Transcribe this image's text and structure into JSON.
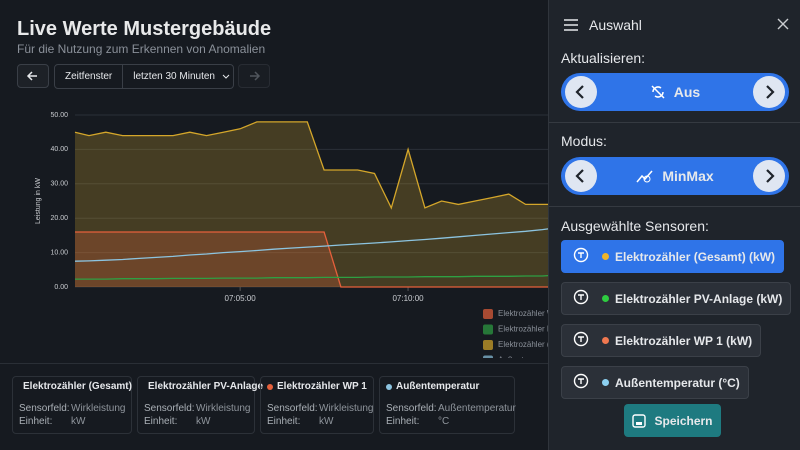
{
  "header": {
    "title": "Live Werte Mustergebäude",
    "subtitle": "Für die Nutzung zum Erkennen von Anomalien"
  },
  "toolbar": {
    "label": "Zeitfenster",
    "range": "letzten 30 Minuten"
  },
  "chart_data": {
    "type": "line",
    "y_label": "Leistung in kW",
    "x": [
      "07:00:05",
      "07:00:30",
      "07:01:00",
      "07:01:30",
      "07:02:00",
      "07:02:30",
      "07:03:00",
      "07:03:30",
      "07:04:00",
      "07:04:30",
      "07:05:00",
      "07:05:30",
      "07:06:00",
      "07:06:30",
      "07:07:00",
      "07:07:30",
      "07:08:00",
      "07:08:30",
      "07:09:00",
      "07:09:30",
      "07:10:00",
      "07:10:30",
      "07:11:00",
      "07:11:30",
      "07:12:00",
      "07:12:30",
      "07:13:00",
      "07:13:30",
      "07:14:00",
      "07:14:10"
    ],
    "xlim": [
      "07:00:05",
      "07:14:10"
    ],
    "xticks": [
      "07:05:00",
      "07:10:00"
    ],
    "ylim": [
      0,
      50
    ],
    "yticks": [
      {
        "value": 0,
        "label": "0.00"
      },
      {
        "value": 10,
        "label": "10.00"
      },
      {
        "value": 20,
        "label": "20.00"
      },
      {
        "value": 30,
        "label": "30.00"
      },
      {
        "value": 40,
        "label": "40.00"
      },
      {
        "value": 50,
        "label": "50.00"
      }
    ],
    "grid": true,
    "series": [
      {
        "name": "Elektrozähler (Gesamt)",
        "color": "#d4a62a",
        "area": true,
        "field": "Wirkleistung",
        "unit": "kW",
        "values": [
          45,
          44,
          45,
          44,
          44,
          44,
          44,
          45,
          44,
          45,
          46,
          48,
          48,
          48,
          48,
          34,
          34,
          34,
          33,
          23,
          40,
          23,
          25,
          24,
          25,
          26,
          27,
          24,
          24,
          24
        ]
      },
      {
        "name": "Elektrozähler PV-Anlage",
        "color": "#2ea043",
        "area": false,
        "field": "Wirkleistung",
        "unit": "kW",
        "values": [
          2.3,
          2.3,
          2.3,
          2.4,
          2.4,
          2.4,
          2.5,
          2.5,
          2.5,
          2.6,
          2.6,
          2.6,
          2.7,
          2.7,
          2.7,
          2.8,
          2.8,
          2.8,
          2.9,
          2.9,
          2.9,
          3.0,
          3.0,
          3.0,
          3.1,
          3.1,
          3.1,
          3.2,
          3.2,
          3.3
        ]
      },
      {
        "name": "Elektrozähler WP 1",
        "color": "#e5603b",
        "area": true,
        "field": "Wirkleistung",
        "unit": "kW",
        "values": [
          16,
          16,
          16,
          16,
          16,
          16,
          16,
          16,
          16,
          16,
          16,
          16,
          16,
          16,
          16,
          16,
          0,
          0,
          0,
          0,
          0,
          0,
          0,
          0,
          0,
          0,
          0,
          0,
          0,
          0
        ]
      },
      {
        "name": "Außentemperatur",
        "color": "#8cc4e0",
        "area": false,
        "field": "Außentemperatur",
        "unit": "°C",
        "values": [
          7.5,
          7.6,
          7.8,
          8.0,
          8.3,
          8.6,
          8.9,
          9.3,
          9.6,
          10.0,
          10.3,
          10.6,
          11.0,
          11.3,
          11.6,
          11.9,
          12.2,
          12.5,
          12.8,
          13.1,
          13.5,
          13.8,
          14.2,
          14.6,
          15.0,
          15.4,
          15.8,
          16.2,
          16.7,
          16.9
        ]
      }
    ]
  },
  "cards": {
    "field_label": "Sensorfeld:",
    "unit_label": "Einheit:"
  },
  "panel": {
    "title": "Auswahl",
    "refresh": {
      "label": "Aktualisieren:",
      "value": "Aus"
    },
    "mode": {
      "label": "Modus:",
      "value": "MinMax"
    },
    "sensors": {
      "label": "Ausgewählte Sensoren:",
      "items": [
        {
          "label": "Elektrozähler (Gesamt) (kW)",
          "color": "#f0b429",
          "selected": true
        },
        {
          "label": "Elektrozähler PV-Anlage (kW)",
          "color": "#2ecc40",
          "selected": false
        },
        {
          "label": "Elektrozähler WP 1 (kW)",
          "color": "#f07850",
          "selected": false
        },
        {
          "label": "Außentemperatur (°C)",
          "color": "#8cd0f0",
          "selected": false
        }
      ]
    },
    "save": "Speichern"
  }
}
